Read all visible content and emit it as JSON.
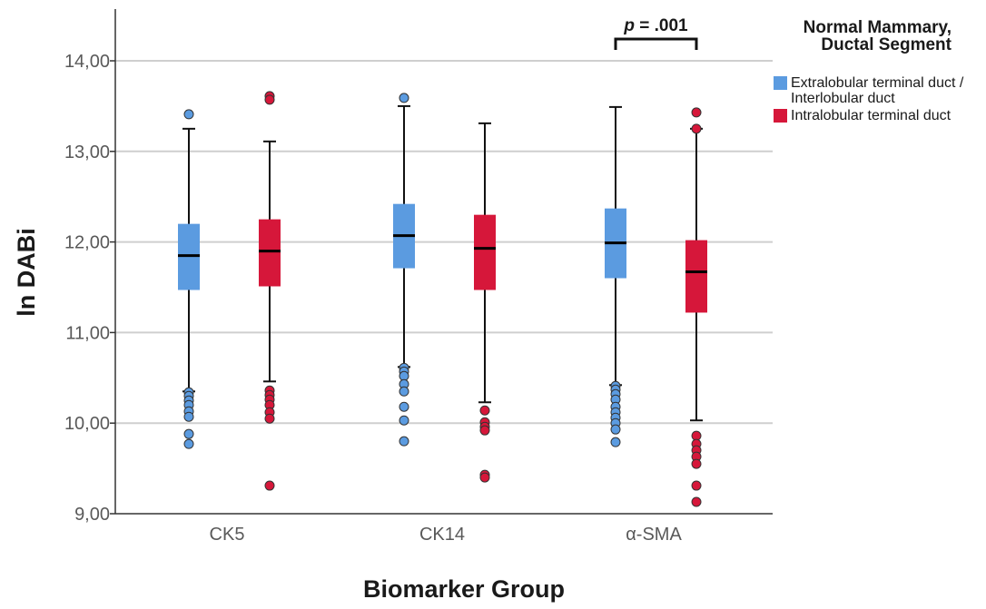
{
  "chart_data": {
    "type": "box",
    "xlabel": "Biomarker Group",
    "ylabel": "ln DABi",
    "ylim": [
      9.0,
      14.35
    ],
    "yticks": [
      "9,00",
      "10,00",
      "11,00",
      "12,00",
      "13,00",
      "14,00"
    ],
    "ytick_values": [
      9,
      10,
      11,
      12,
      13,
      14
    ],
    "grid": "horizontal",
    "categories": [
      "CK5",
      "CK14",
      "α-SMA"
    ],
    "legend": {
      "title_lines": [
        "Normal Mammary,",
        "Ductal Segment"
      ],
      "placement": "right",
      "entries": [
        {
          "lines": [
            "Extralobular terminal duct /",
            "Interlobular duct"
          ],
          "color": "#5B9BE0"
        },
        {
          "lines": [
            "Intralobular terminal duct"
          ],
          "color": "#D6173A"
        }
      ]
    },
    "series": [
      {
        "name": "Extralobular terminal duct / Interlobular duct",
        "color": "#5B9BE0",
        "boxes": [
          {
            "whisker_low": 10.35,
            "q1": 11.47,
            "median": 11.85,
            "q3": 12.2,
            "whisker_high": 13.25,
            "outliers": [
              13.41,
              10.34,
              10.3,
              10.25,
              10.2,
              10.13,
              10.07,
              9.88,
              9.77
            ]
          },
          {
            "whisker_low": 10.62,
            "q1": 11.71,
            "median": 12.07,
            "q3": 12.42,
            "whisker_high": 13.5,
            "outliers": [
              13.59,
              10.61,
              10.57,
              10.52,
              10.43,
              10.35,
              10.18,
              10.03,
              9.8
            ]
          },
          {
            "whisker_low": 10.42,
            "q1": 11.6,
            "median": 11.99,
            "q3": 12.37,
            "whisker_high": 13.49,
            "outliers": [
              10.41,
              10.37,
              10.32,
              10.26,
              10.18,
              10.12,
              10.06,
              10.0,
              9.93,
              9.79
            ]
          }
        ]
      },
      {
        "name": "Intralobular terminal duct",
        "color": "#D6173A",
        "boxes": [
          {
            "whisker_low": 10.46,
            "q1": 11.51,
            "median": 11.9,
            "q3": 12.25,
            "whisker_high": 13.11,
            "outliers": [
              13.61,
              13.57,
              10.36,
              10.31,
              10.26,
              10.2,
              10.12,
              10.05,
              9.31
            ]
          },
          {
            "whisker_low": 10.23,
            "q1": 11.47,
            "median": 11.93,
            "q3": 12.3,
            "whisker_high": 13.31,
            "outliers": [
              10.14,
              10.01,
              9.96,
              9.92,
              9.43,
              9.4
            ]
          },
          {
            "whisker_low": 10.03,
            "q1": 11.22,
            "median": 11.67,
            "q3": 12.02,
            "whisker_high": 13.25,
            "outliers": [
              13.43,
              13.25,
              9.86,
              9.77,
              9.7,
              9.63,
              9.55,
              9.31,
              9.13
            ]
          }
        ]
      }
    ],
    "annotation": {
      "text": "p = .001",
      "category": "α-SMA",
      "bracket": "between series"
    }
  }
}
